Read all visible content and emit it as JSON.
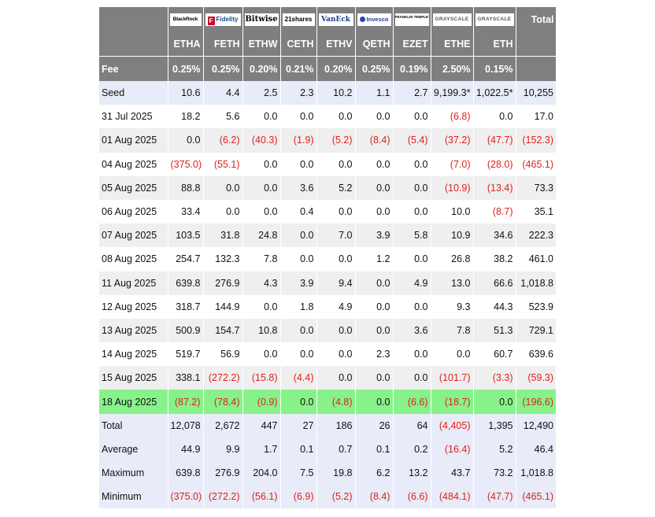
{
  "table": {
    "total_header": "Total",
    "fee_label": "Fee",
    "providers": [
      {
        "name": "BlackRock",
        "icon": "blackrock-logo"
      },
      {
        "name": "Fidelity",
        "icon": "fidelity-logo"
      },
      {
        "name": "Bitwise",
        "icon": "bitwise-logo"
      },
      {
        "name": "21shares",
        "icon": "21shares-logo"
      },
      {
        "name": "VanEck",
        "icon": "vaneck-logo"
      },
      {
        "name": "Invesco",
        "icon": "invesco-logo"
      },
      {
        "name": "FRANKLIN TEMPLETON",
        "icon": "franklin-templeton-logo"
      },
      {
        "name": "GRAYSCALE",
        "icon": "grayscale-logo"
      },
      {
        "name": "GRAYSCALE",
        "icon": "grayscale-logo"
      }
    ],
    "tickers": [
      "ETHA",
      "FETH",
      "ETHW",
      "CETH",
      "ETHV",
      "QETH",
      "EZET",
      "ETHE",
      "ETH"
    ],
    "fees": [
      "0.25%",
      "0.25%",
      "0.20%",
      "0.21%",
      "0.20%",
      "0.25%",
      "0.19%",
      "2.50%",
      "0.15%"
    ],
    "rows": [
      {
        "label": "Seed",
        "style": "seed",
        "values": [
          "10.6",
          "4.4",
          "2.5",
          "2.3",
          "10.2",
          "1.1",
          "2.7",
          "9,199.3*",
          "1,022.5*",
          "10,255"
        ]
      },
      {
        "label": "31 Jul 2025",
        "style": "odd",
        "values": [
          "18.2",
          "5.6",
          "0.0",
          "0.0",
          "0.0",
          "0.0",
          "0.0",
          "(6.8)",
          "0.0",
          "17.0"
        ]
      },
      {
        "label": "01 Aug 2025",
        "style": "even",
        "values": [
          "0.0",
          "(6.2)",
          "(40.3)",
          "(1.9)",
          "(5.2)",
          "(8.4)",
          "(5.4)",
          "(37.2)",
          "(47.7)",
          "(152.3)"
        ]
      },
      {
        "label": "04 Aug 2025",
        "style": "odd",
        "values": [
          "(375.0)",
          "(55.1)",
          "0.0",
          "0.0",
          "0.0",
          "0.0",
          "0.0",
          "(7.0)",
          "(28.0)",
          "(465.1)"
        ]
      },
      {
        "label": "05 Aug 2025",
        "style": "even",
        "values": [
          "88.8",
          "0.0",
          "0.0",
          "3.6",
          "5.2",
          "0.0",
          "0.0",
          "(10.9)",
          "(13.4)",
          "73.3"
        ]
      },
      {
        "label": "06 Aug 2025",
        "style": "odd",
        "values": [
          "33.4",
          "0.0",
          "0.0",
          "0.4",
          "0.0",
          "0.0",
          "0.0",
          "10.0",
          "(8.7)",
          "35.1"
        ]
      },
      {
        "label": "07 Aug 2025",
        "style": "even",
        "values": [
          "103.5",
          "31.8",
          "24.8",
          "0.0",
          "7.0",
          "3.9",
          "5.8",
          "10.9",
          "34.6",
          "222.3"
        ]
      },
      {
        "label": "08 Aug 2025",
        "style": "odd",
        "values": [
          "254.7",
          "132.3",
          "7.8",
          "0.0",
          "0.0",
          "1.2",
          "0.0",
          "26.8",
          "38.2",
          "461.0"
        ]
      },
      {
        "label": "11 Aug 2025",
        "style": "even",
        "values": [
          "639.8",
          "276.9",
          "4.3",
          "3.9",
          "9.4",
          "0.0",
          "4.9",
          "13.0",
          "66.6",
          "1,018.8"
        ]
      },
      {
        "label": "12 Aug 2025",
        "style": "odd",
        "values": [
          "318.7",
          "144.9",
          "0.0",
          "1.8",
          "4.9",
          "0.0",
          "0.0",
          "9.3",
          "44.3",
          "523.9"
        ]
      },
      {
        "label": "13 Aug 2025",
        "style": "even",
        "values": [
          "500.9",
          "154.7",
          "10.8",
          "0.0",
          "0.0",
          "0.0",
          "3.6",
          "7.8",
          "51.3",
          "729.1"
        ]
      },
      {
        "label": "14 Aug 2025",
        "style": "odd",
        "values": [
          "519.7",
          "56.9",
          "0.0",
          "0.0",
          "0.0",
          "2.3",
          "0.0",
          "0.0",
          "60.7",
          "639.6"
        ]
      },
      {
        "label": "15 Aug 2025",
        "style": "even",
        "values": [
          "338.1",
          "(272.2)",
          "(15.8)",
          "(4.4)",
          "0.0",
          "0.0",
          "0.0",
          "(101.7)",
          "(3.3)",
          "(59.3)"
        ]
      },
      {
        "label": "18 Aug 2025",
        "style": "hl",
        "values": [
          "(87.2)",
          "(78.4)",
          "(0.9)",
          "0.0",
          "(4.8)",
          "0.0",
          "(6.6)",
          "(18.7)",
          "0.0",
          "(196.6)"
        ]
      },
      {
        "label": "Total",
        "style": "sum",
        "values": [
          "12,078",
          "2,672",
          "447",
          "27",
          "186",
          "26",
          "64",
          "(4,405)",
          "1,395",
          "12,490"
        ]
      },
      {
        "label": "Average",
        "style": "sum",
        "values": [
          "44.9",
          "9.9",
          "1.7",
          "0.1",
          "0.7",
          "0.1",
          "0.2",
          "(16.4)",
          "5.2",
          "46.4"
        ]
      },
      {
        "label": "Maximum",
        "style": "sum",
        "values": [
          "639.8",
          "276.9",
          "204.0",
          "7.5",
          "19.8",
          "6.2",
          "13.2",
          "43.7",
          "73.2",
          "1,018.8"
        ]
      },
      {
        "label": "Minimum",
        "style": "sum",
        "values": [
          "(375.0)",
          "(272.2)",
          "(56.1)",
          "(6.9)",
          "(5.2)",
          "(8.4)",
          "(6.6)",
          "(484.1)",
          "(47.7)",
          "(465.1)"
        ]
      }
    ],
    "colors": {
      "header_bg": "#7f7f7f",
      "negative": "#e0201a",
      "highlight": "#88f28a",
      "summary_bg": "#e8ebf8",
      "stripe": "#efefef"
    }
  }
}
